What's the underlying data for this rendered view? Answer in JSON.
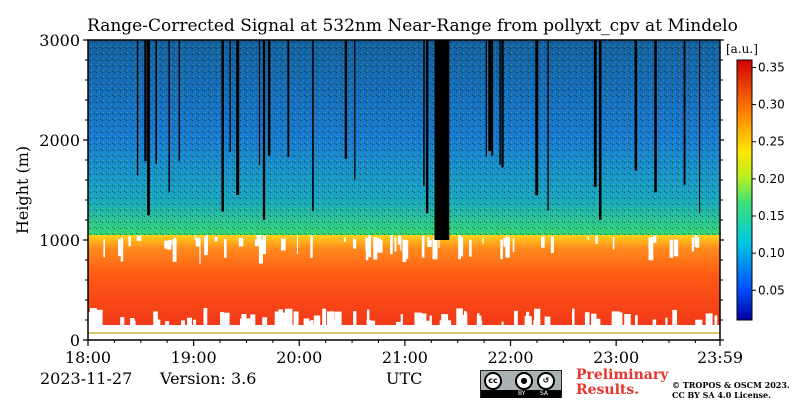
{
  "chart_data": {
    "type": "heatmap",
    "title": "Range-Corrected Signal at 532nm Near-Range from pollyxt_cpv at Mindelo",
    "xlabel": "",
    "ylabel": "Height (m)",
    "x_tick_labels": [
      "18:00",
      "19:00",
      "20:00",
      "21:00",
      "22:00",
      "23:00",
      "23:59"
    ],
    "x_ticks_hours": [
      18,
      19,
      20,
      21,
      22,
      23,
      23.983
    ],
    "xlim_hours": [
      18,
      23.983
    ],
    "y_tick_labels": [
      "0",
      "1000",
      "2000",
      "3000"
    ],
    "y_ticks": [
      0,
      1000,
      2000,
      3000
    ],
    "ylim": [
      0,
      3000
    ],
    "colorbar": {
      "unit_label": "[a.u.]",
      "tick_labels": [
        "0.05",
        "0.10",
        "0.15",
        "0.20",
        "0.25",
        "0.30",
        "0.35"
      ],
      "ticks": [
        0.05,
        0.1,
        0.15,
        0.2,
        0.25,
        0.3,
        0.35
      ],
      "range": [
        0.01,
        0.36
      ],
      "colormap": "jet"
    },
    "no_data_periods_hours": [
      [
        21.28,
        21.42
      ]
    ],
    "layers": [
      {
        "name_hint": "boundary layer signal",
        "bottom_m": 150,
        "top_m": 1050,
        "value": 0.33
      },
      {
        "name_hint": "transition",
        "bottom_m": 1050,
        "top_m": 1400,
        "value": 0.15
      },
      {
        "name_hint": "free troposphere",
        "bottom_m": 1400,
        "top_m": 3000,
        "value": 0.08
      }
    ]
  },
  "footer": {
    "date": "2023-11-27",
    "version": "Version: 3.6",
    "timezone": "UTC",
    "preliminary": [
      "Preliminary",
      "Results."
    ],
    "copyright": [
      "© TROPOS & OSCM 2023.",
      "CC BY SA 4.0 License."
    ],
    "license_badge": {
      "by": "BY",
      "sa": "SA",
      "cc": "cc"
    }
  },
  "colors": {
    "high_signal": "#e8342e",
    "mid_signal": "#2ecc40",
    "low_signal": "#1f78c8",
    "no_data": "#000000"
  }
}
